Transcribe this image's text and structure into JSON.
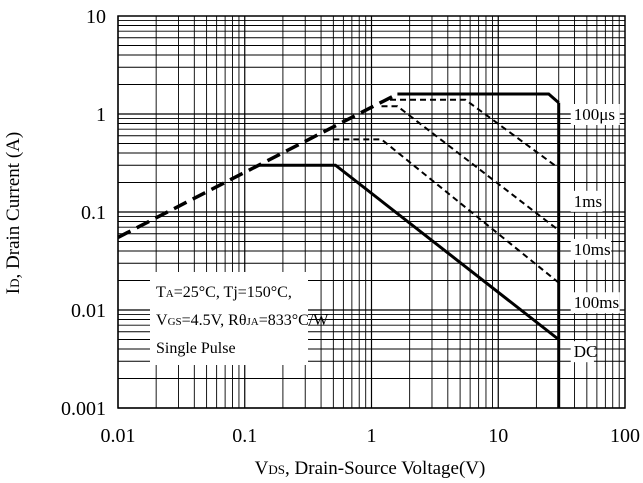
{
  "chart_data": {
    "type": "line",
    "title": "",
    "xscale": "log",
    "yscale": "log",
    "xlim": [
      0.01,
      100
    ],
    "ylim": [
      0.001,
      10
    ],
    "grid": true,
    "xlabel": {
      "main": "V",
      "sub": "DS",
      "rest": ", Drain-Source Voltage(V)"
    },
    "ylabel": {
      "main": "I",
      "sub": "D",
      "rest": ", Drain Current (A)"
    },
    "x_ticks": [
      {
        "value": 0.01,
        "label": "0.01"
      },
      {
        "value": 0.1,
        "label": "0.1"
      },
      {
        "value": 1,
        "label": "1"
      },
      {
        "value": 10,
        "label": "10"
      },
      {
        "value": 100,
        "label": "100"
      }
    ],
    "y_ticks": [
      {
        "value": 10,
        "label": "10"
      },
      {
        "value": 1,
        "label": "1"
      },
      {
        "value": 0.1,
        "label": "0.1"
      },
      {
        "value": 0.01,
        "label": "0.01"
      },
      {
        "value": 0.001,
        "label": "0.001"
      }
    ],
    "series": [
      {
        "key": "rdson",
        "style": "longdash",
        "points": [
          [
            0.01,
            0.055
          ],
          [
            1.6,
            1.6
          ]
        ]
      },
      {
        "key": "us100",
        "style": "solid",
        "points": [
          [
            1.6,
            1.6
          ],
          [
            25,
            1.6
          ],
          [
            30,
            1.3
          ]
        ]
      },
      {
        "key": "ms1",
        "style": "dash",
        "points": [
          [
            1.4,
            1.4
          ],
          [
            1.6,
            1.4
          ],
          [
            5.5,
            1.4
          ],
          [
            30,
            0.28
          ]
        ]
      },
      {
        "key": "ms10",
        "style": "dash",
        "points": [
          [
            1.2,
            1.2
          ],
          [
            1.5,
            1.2
          ],
          [
            1.6,
            1.2
          ],
          [
            30,
            0.065
          ]
        ]
      },
      {
        "key": "ms100",
        "style": "dash",
        "points": [
          [
            0.5,
            0.55
          ],
          [
            1.05,
            0.55
          ],
          [
            1.2,
            0.55
          ],
          [
            30,
            0.019
          ]
        ]
      },
      {
        "key": "dc",
        "style": "solid",
        "points": [
          [
            0.13,
            0.3
          ],
          [
            0.52,
            0.3
          ],
          [
            30,
            0.005
          ]
        ]
      },
      {
        "key": "vmax",
        "style": "solid",
        "points": [
          [
            30,
            1.3
          ],
          [
            30,
            0.001
          ]
        ]
      }
    ],
    "annotations": [
      {
        "key": "us100",
        "text": "100μs"
      },
      {
        "key": "ms1",
        "text": "1ms"
      },
      {
        "key": "ms10",
        "text": "10ms"
      },
      {
        "key": "ms100",
        "text": "100ms"
      },
      {
        "key": "dc",
        "text": "DC"
      }
    ],
    "conditions": {
      "line1": {
        "a": "T",
        "a_sub": "A",
        "b": "=25°C, Tj=150°C,"
      },
      "line2": {
        "a": "V",
        "a_sub": "GS",
        "b": "=4.5V, Rθ",
        "b_sub": "JA",
        "c": "=833°C/W"
      },
      "line3": "Single Pulse"
    }
  }
}
